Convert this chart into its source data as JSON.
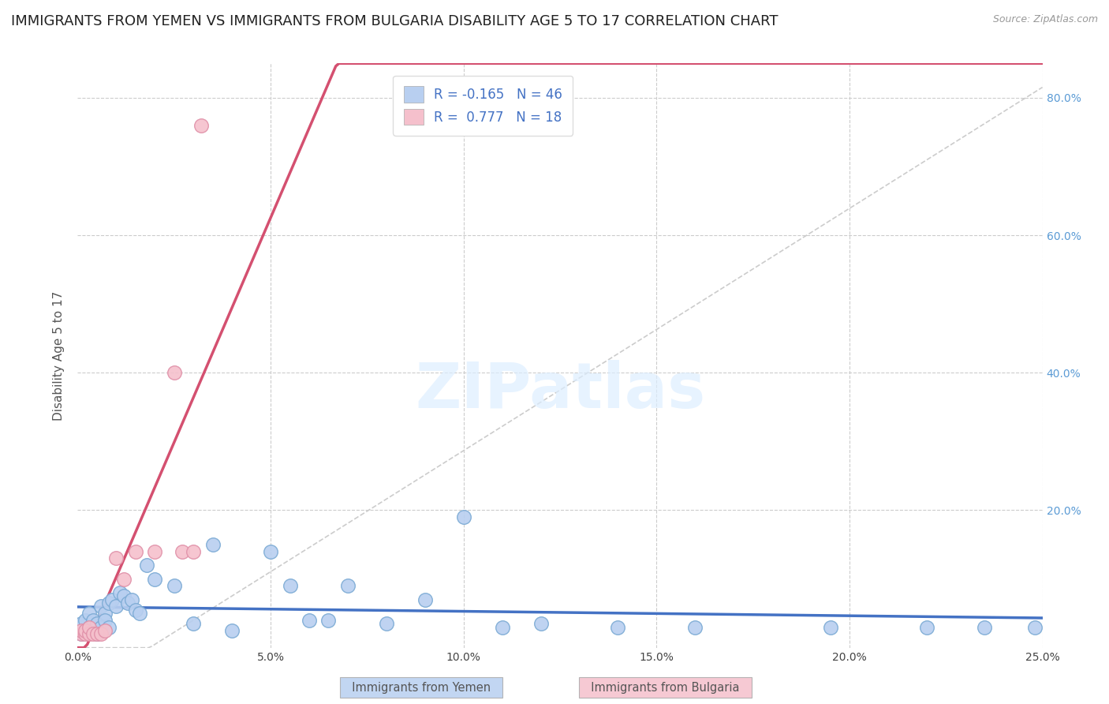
{
  "title": "IMMIGRANTS FROM YEMEN VS IMMIGRANTS FROM BULGARIA DISABILITY AGE 5 TO 17 CORRELATION CHART",
  "source": "Source: ZipAtlas.com",
  "ylabel": "Disability Age 5 to 17",
  "xlim": [
    0.0,
    0.25
  ],
  "ylim": [
    0.0,
    0.85
  ],
  "yemen_color": "#b8cff0",
  "yemen_edge": "#7baad4",
  "bulgaria_color": "#f5c0cc",
  "bulgaria_edge": "#e090a8",
  "yemen_R": -0.165,
  "yemen_N": 46,
  "bulgaria_R": 0.777,
  "bulgaria_N": 18,
  "background_color": "#ffffff",
  "tick_color_right": "#5b9bd5",
  "title_fontsize": 13,
  "axis_label_fontsize": 11,
  "tick_fontsize": 10,
  "legend_fontsize": 12,
  "yemen_line_color": "#4472c4",
  "bulgaria_line_color": "#d45070",
  "gray_dash_color": "#cccccc",
  "watermark_color": "#ddeeff",
  "yemen_x": [
    0.001,
    0.001,
    0.002,
    0.002,
    0.003,
    0.003,
    0.004,
    0.004,
    0.005,
    0.005,
    0.006,
    0.006,
    0.007,
    0.007,
    0.008,
    0.008,
    0.009,
    0.01,
    0.011,
    0.012,
    0.013,
    0.014,
    0.015,
    0.016,
    0.018,
    0.02,
    0.025,
    0.03,
    0.035,
    0.04,
    0.05,
    0.055,
    0.06,
    0.065,
    0.07,
    0.08,
    0.09,
    0.1,
    0.11,
    0.12,
    0.14,
    0.16,
    0.195,
    0.22,
    0.235,
    0.248
  ],
  "yemen_y": [
    0.02,
    0.035,
    0.025,
    0.04,
    0.03,
    0.05,
    0.04,
    0.025,
    0.02,
    0.035,
    0.03,
    0.06,
    0.05,
    0.04,
    0.03,
    0.065,
    0.07,
    0.06,
    0.08,
    0.075,
    0.065,
    0.07,
    0.055,
    0.05,
    0.12,
    0.1,
    0.09,
    0.035,
    0.15,
    0.025,
    0.14,
    0.09,
    0.04,
    0.04,
    0.09,
    0.035,
    0.07,
    0.19,
    0.03,
    0.035,
    0.03,
    0.03,
    0.03,
    0.03,
    0.03,
    0.03
  ],
  "bulgaria_x": [
    0.001,
    0.001,
    0.002,
    0.002,
    0.003,
    0.003,
    0.004,
    0.005,
    0.006,
    0.007,
    0.01,
    0.012,
    0.015,
    0.02,
    0.025,
    0.027,
    0.03,
    0.032
  ],
  "bulgaria_y": [
    0.02,
    0.025,
    0.02,
    0.025,
    0.02,
    0.03,
    0.02,
    0.02,
    0.02,
    0.025,
    0.13,
    0.1,
    0.14,
    0.14,
    0.4,
    0.14,
    0.14,
    0.76
  ]
}
